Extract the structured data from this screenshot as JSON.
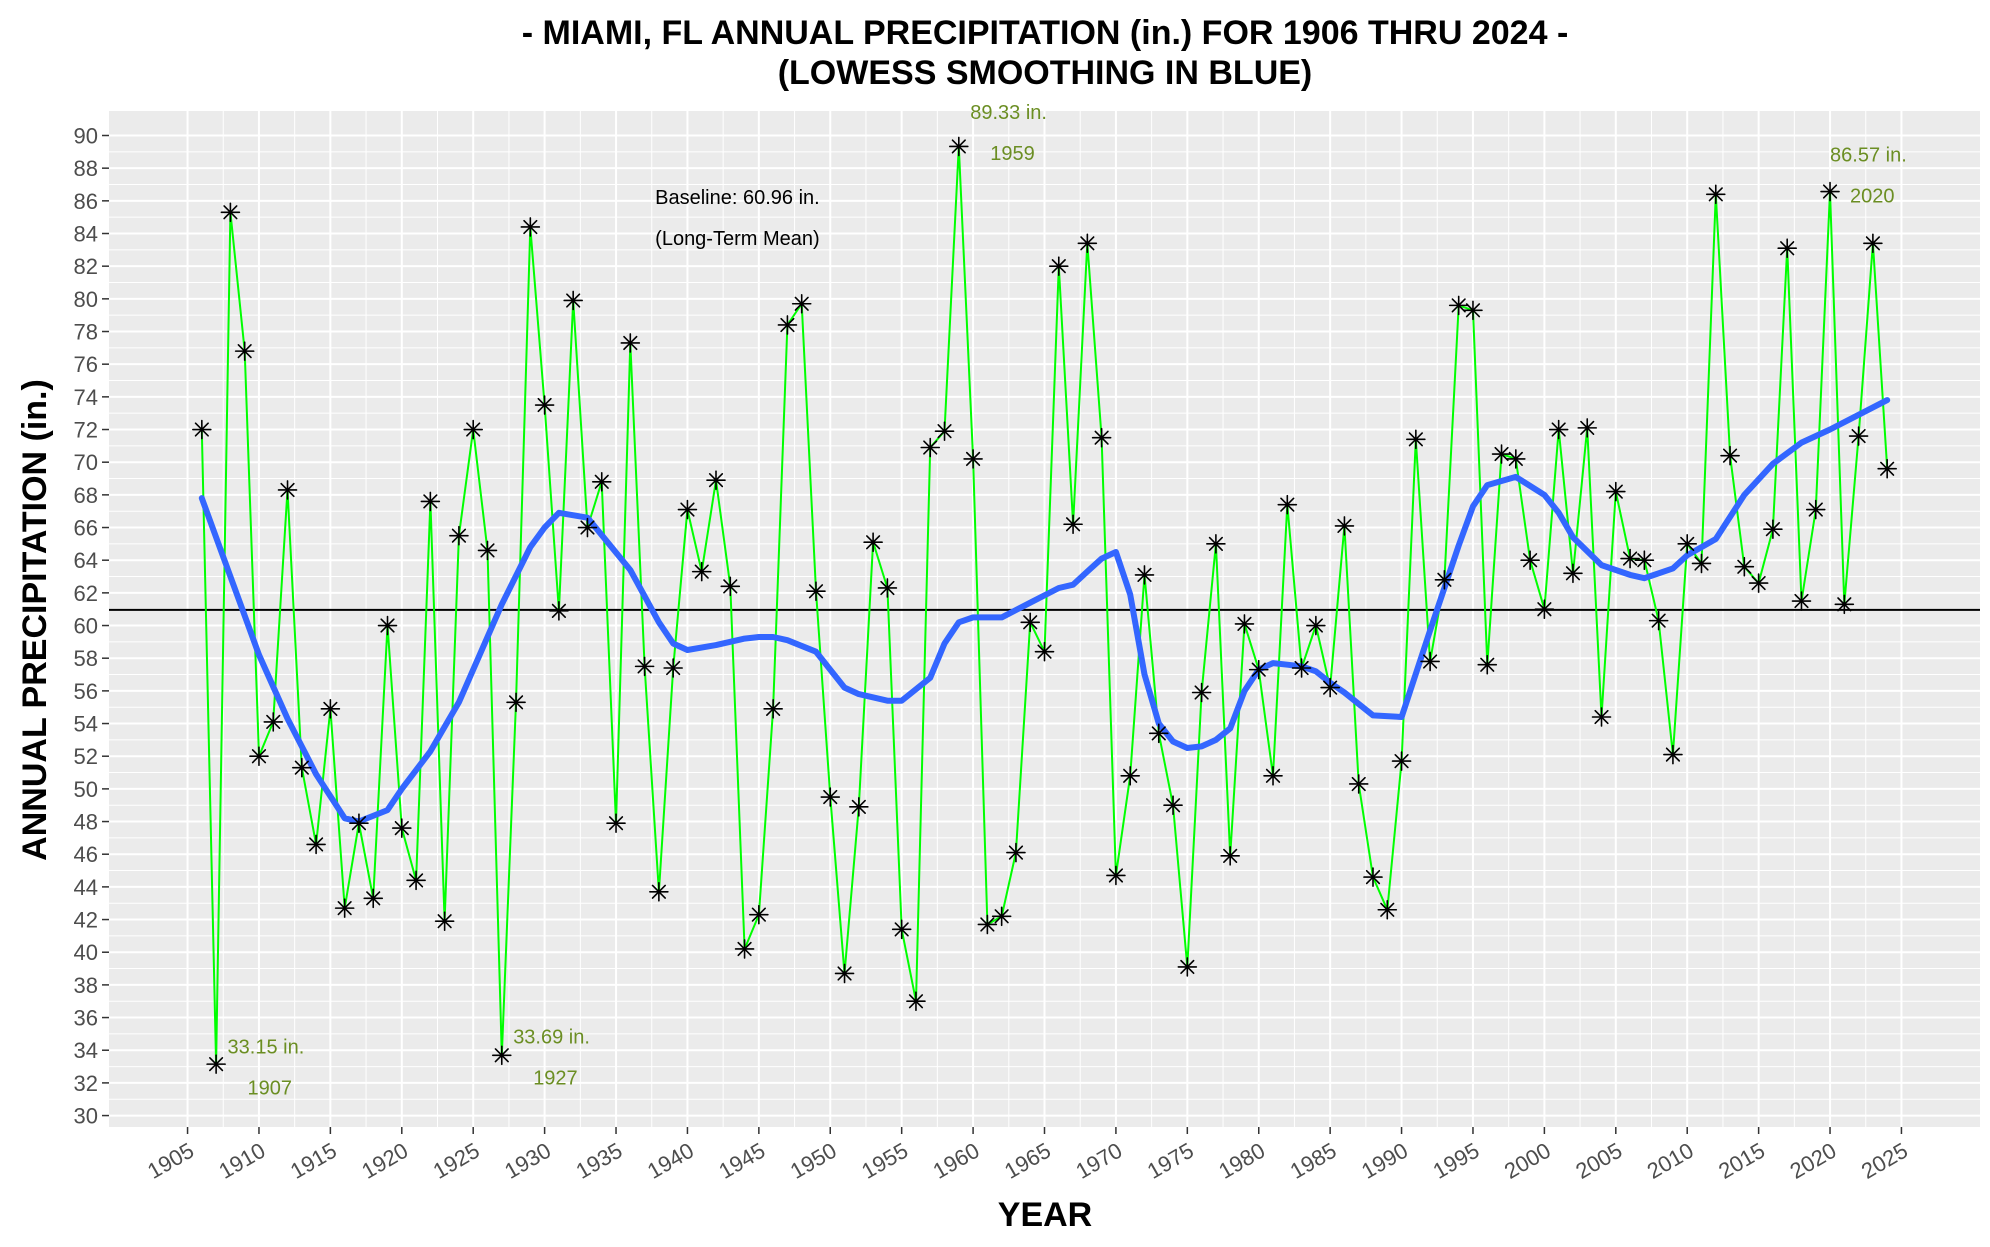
{
  "chart_data": {
    "type": "line",
    "title_line1": "- MIAMI, FL ANNUAL PRECIPITATION (in.) FOR 1906 THRU 2024 -",
    "title_line2": "(LOWESS SMOOTHING IN BLUE)",
    "xlabel": "YEAR",
    "ylabel": "ANNUAL PRECIPITATION (in.)",
    "xlim": [
      1899.5,
      2030.5
    ],
    "ylim": [
      29.3,
      91.5
    ],
    "x_ticks": [
      1905,
      1910,
      1915,
      1920,
      1925,
      1930,
      1935,
      1940,
      1945,
      1950,
      1955,
      1960,
      1965,
      1970,
      1975,
      1980,
      1985,
      1990,
      1995,
      2000,
      2005,
      2010,
      2015,
      2020,
      2025
    ],
    "y_ticks": [
      30,
      32,
      34,
      36,
      38,
      40,
      42,
      44,
      46,
      48,
      50,
      52,
      54,
      56,
      58,
      60,
      62,
      64,
      66,
      68,
      70,
      72,
      74,
      76,
      78,
      80,
      82,
      84,
      86,
      88,
      90
    ],
    "grid": true,
    "colors": {
      "panel_bg": "#ebebeb",
      "grid": "#ffffff",
      "series_line": "#00ff00",
      "points": "#000000",
      "smooth": "#3366ff",
      "baseline": "#000000",
      "annotation": "#6b8e23"
    },
    "series": [
      {
        "name": "Annual Precipitation",
        "x": [
          1906,
          1907,
          1908,
          1909,
          1910,
          1911,
          1912,
          1913,
          1914,
          1915,
          1916,
          1917,
          1918,
          1919,
          1920,
          1921,
          1922,
          1923,
          1924,
          1925,
          1926,
          1927,
          1928,
          1929,
          1930,
          1931,
          1932,
          1933,
          1934,
          1935,
          1936,
          1937,
          1938,
          1939,
          1940,
          1941,
          1942,
          1943,
          1944,
          1945,
          1946,
          1947,
          1948,
          1949,
          1950,
          1951,
          1952,
          1953,
          1954,
          1955,
          1956,
          1957,
          1958,
          1959,
          1960,
          1961,
          1962,
          1963,
          1964,
          1965,
          1966,
          1967,
          1968,
          1969,
          1970,
          1971,
          1972,
          1973,
          1974,
          1975,
          1976,
          1977,
          1978,
          1979,
          1980,
          1981,
          1982,
          1983,
          1984,
          1985,
          1986,
          1987,
          1988,
          1989,
          1990,
          1991,
          1992,
          1993,
          1994,
          1995,
          1996,
          1997,
          1998,
          1999,
          2000,
          2001,
          2002,
          2003,
          2004,
          2005,
          2006,
          2007,
          2008,
          2009,
          2010,
          2011,
          2012,
          2013,
          2014,
          2015,
          2016,
          2017,
          2018,
          2019,
          2020,
          2021,
          2022,
          2023,
          2024
        ],
        "values": [
          72.0,
          33.15,
          85.3,
          76.8,
          52.0,
          54.1,
          68.3,
          51.3,
          46.6,
          54.9,
          42.7,
          47.9,
          43.3,
          60.0,
          47.6,
          44.4,
          67.6,
          41.9,
          65.5,
          72.0,
          64.6,
          33.69,
          55.3,
          84.4,
          73.5,
          60.9,
          79.9,
          66.0,
          68.8,
          47.9,
          77.3,
          57.5,
          43.7,
          57.4,
          67.1,
          63.3,
          68.9,
          62.4,
          40.2,
          42.3,
          54.9,
          78.4,
          79.7,
          62.1,
          49.5,
          38.7,
          48.9,
          65.1,
          62.3,
          41.4,
          37.0,
          70.9,
          71.9,
          89.33,
          70.2,
          41.7,
          42.2,
          46.1,
          60.2,
          58.4,
          82.0,
          66.2,
          83.4,
          71.5,
          44.7,
          50.8,
          63.1,
          53.4,
          49.0,
          39.1,
          55.9,
          65.0,
          45.9,
          60.1,
          57.3,
          50.8,
          67.4,
          57.4,
          60.0,
          56.2,
          66.1,
          50.3,
          44.6,
          42.6,
          51.7,
          71.4,
          57.8,
          62.8,
          79.6,
          79.3,
          57.6,
          70.5,
          70.2,
          64.0,
          61.0,
          72.0,
          63.2,
          72.1,
          54.4,
          68.2,
          64.1,
          64.0,
          60.3,
          52.1,
          65.0,
          63.8,
          86.4,
          70.4,
          63.6,
          62.6,
          65.9,
          83.1,
          61.5,
          67.1,
          86.57,
          61.3,
          71.6,
          83.4,
          69.6
        ]
      },
      {
        "name": "LOWESS smoothing",
        "x": [
          1906,
          1908,
          1910,
          1912,
          1914,
          1916,
          1917,
          1919,
          1920,
          1922,
          1924,
          1927,
          1929,
          1930,
          1931,
          1933,
          1936,
          1938,
          1939,
          1940,
          1942,
          1944,
          1945,
          1946,
          1947,
          1949,
          1951,
          1952,
          1954,
          1955,
          1957,
          1958,
          1959,
          1960,
          1961,
          1962,
          1964,
          1966,
          1967,
          1968,
          1969,
          1970,
          1971,
          1972,
          1973,
          1974,
          1975,
          1976,
          1977,
          1978,
          1979,
          1980,
          1981,
          1982,
          1983,
          1984,
          1985,
          1986,
          1988,
          1990,
          1992,
          1994,
          1995,
          1996,
          1998,
          2000,
          2001,
          2002,
          2004,
          2006,
          2007,
          2009,
          2010,
          2012,
          2014,
          2016,
          2018,
          2020,
          2022,
          2024
        ],
        "values": [
          67.8,
          63.0,
          58.2,
          54.3,
          50.9,
          48.2,
          48.0,
          48.7,
          50.0,
          52.3,
          55.3,
          61.3,
          64.8,
          66.0,
          66.9,
          66.6,
          63.4,
          60.2,
          58.9,
          58.5,
          58.8,
          59.2,
          59.3,
          59.3,
          59.1,
          58.4,
          56.2,
          55.8,
          55.4,
          55.4,
          56.8,
          58.9,
          60.2,
          60.5,
          60.5,
          60.5,
          61.4,
          62.3,
          62.5,
          63.3,
          64.1,
          64.5,
          61.9,
          57.0,
          54.0,
          52.9,
          52.5,
          52.6,
          53.0,
          53.7,
          56.0,
          57.3,
          57.7,
          57.6,
          57.5,
          57.2,
          56.5,
          55.9,
          54.5,
          54.4,
          59.7,
          64.9,
          67.3,
          68.6,
          69.1,
          68.0,
          66.9,
          65.4,
          63.7,
          63.1,
          62.9,
          63.5,
          64.3,
          65.3,
          68.0,
          69.9,
          71.2,
          72.0,
          72.9,
          73.8
        ]
      }
    ],
    "baseline": {
      "value": 60.96,
      "label_line1": "Baseline: 60.96 in.",
      "label_line2": "(Long-Term Mean)"
    },
    "annotations": [
      {
        "value_label": "33.15 in.",
        "year_label": "1907",
        "year": 1907,
        "value": 33.15
      },
      {
        "value_label": "33.69 in.",
        "year_label": "1927",
        "year": 1927,
        "value": 33.69
      },
      {
        "value_label": "89.33 in.",
        "year_label": "1959",
        "year": 1959,
        "value": 89.33
      },
      {
        "value_label": "86.57 in.",
        "year_label": "2020",
        "year": 2020,
        "value": 86.57
      }
    ]
  }
}
